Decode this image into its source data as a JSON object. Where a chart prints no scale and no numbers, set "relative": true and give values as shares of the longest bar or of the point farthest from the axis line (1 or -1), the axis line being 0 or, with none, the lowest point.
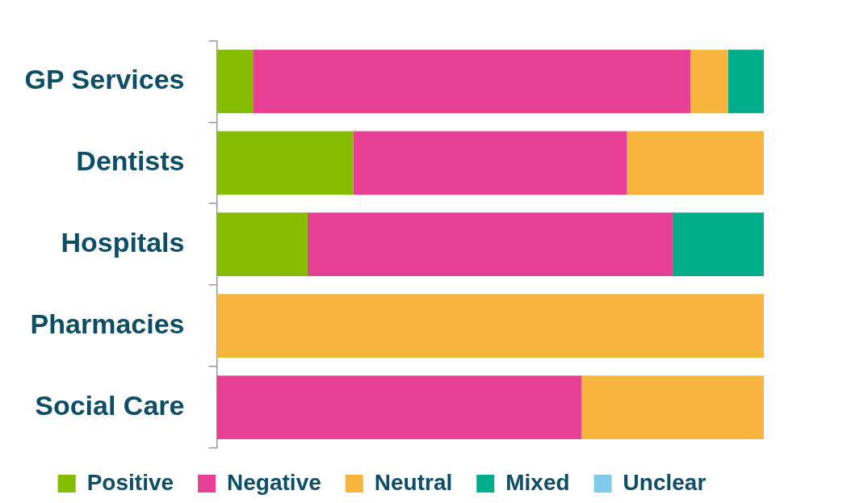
{
  "chart_data": {
    "type": "bar",
    "orientation": "horizontal",
    "stacked": true,
    "relative": true,
    "legend": "bottom",
    "categories": [
      "GP Services",
      "Dentists",
      "Hospitals",
      "Pharmacies",
      "Social Care"
    ],
    "series": [
      {
        "name": "Positive",
        "color": "#84bd00",
        "values": [
          0.066,
          0.25,
          0.166,
          0,
          0
        ]
      },
      {
        "name": "Negative",
        "color": "#e63f94",
        "values": [
          0.8,
          0.5,
          0.667,
          0,
          0.667
        ]
      },
      {
        "name": "Neutral",
        "color": "#f7b53e",
        "values": [
          0.069,
          0.25,
          0,
          1,
          0.333
        ]
      },
      {
        "name": "Mixed",
        "color": "#00ad8c",
        "values": [
          0.065,
          0,
          0.167,
          0,
          0
        ]
      },
      {
        "name": "Unclear",
        "color": "#7fcce8",
        "values": [
          0,
          0,
          0,
          0,
          0
        ]
      }
    ]
  }
}
